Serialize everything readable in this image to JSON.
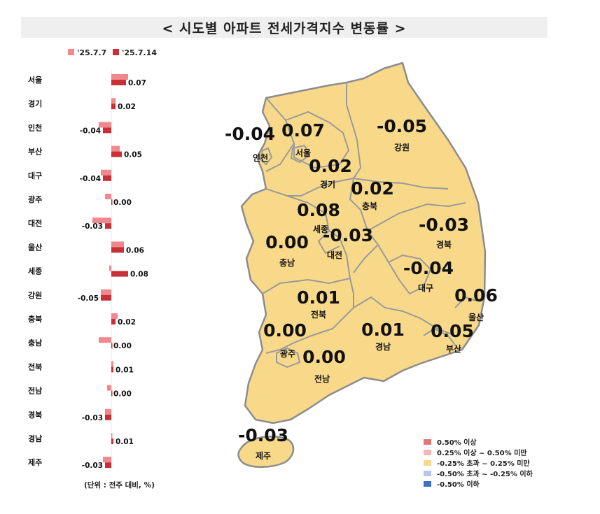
{
  "title": "< 시도별 아파트 전세가격지수 변동률 >",
  "unit_note": "(단위 : 전주 대비, %)",
  "chart_data": {
    "type": "bar",
    "orientation": "horizontal",
    "categories": [
      "서울",
      "경기",
      "인천",
      "부산",
      "대구",
      "광주",
      "대전",
      "울산",
      "세종",
      "강원",
      "충북",
      "충남",
      "전북",
      "전남",
      "경북",
      "경남",
      "제주"
    ],
    "series": [
      {
        "name": "'25.7.7",
        "color": "#f1888e",
        "values": [
          0.08,
          0.02,
          -0.06,
          0.04,
          -0.05,
          -0.03,
          -0.09,
          0.06,
          -0.01,
          -0.05,
          0.03,
          -0.06,
          0.01,
          -0.02,
          -0.03,
          0.0,
          -0.04
        ]
      },
      {
        "name": "'25.7.14",
        "color": "#c82f36",
        "values": [
          0.07,
          0.02,
          -0.04,
          0.05,
          -0.04,
          0.0,
          -0.03,
          0.06,
          0.08,
          -0.05,
          0.02,
          0.0,
          0.01,
          0.0,
          -0.03,
          0.01,
          -0.03
        ]
      }
    ],
    "value_labels": [
      "0.07",
      "0.02",
      "-0.04",
      "0.05",
      "-0.04",
      "0.00",
      "-0.03",
      "0.06",
      "0.08",
      "-0.05",
      "0.02",
      "0.00",
      "0.01",
      "0.00",
      "-0.03",
      "0.01",
      "-0.03"
    ],
    "legend_position": "top",
    "grid": false
  },
  "map": {
    "regions": [
      {
        "name": "서울",
        "value": "0.07"
      },
      {
        "name": "인천",
        "value": "-0.04"
      },
      {
        "name": "경기",
        "value": "0.02"
      },
      {
        "name": "강원",
        "value": "-0.05"
      },
      {
        "name": "충북",
        "value": "0.02"
      },
      {
        "name": "세종",
        "value": "0.08"
      },
      {
        "name": "대전",
        "value": "-0.03"
      },
      {
        "name": "충남",
        "value": "0.00"
      },
      {
        "name": "경북",
        "value": "-0.03"
      },
      {
        "name": "대구",
        "value": "-0.04"
      },
      {
        "name": "울산",
        "value": "0.06"
      },
      {
        "name": "전북",
        "value": "0.01"
      },
      {
        "name": "경남",
        "value": "0.01"
      },
      {
        "name": "부산",
        "value": "0.05"
      },
      {
        "name": "광주",
        "value": "0.00"
      },
      {
        "name": "전남",
        "value": "0.00"
      },
      {
        "name": "제주",
        "value": "-0.03"
      }
    ],
    "fill_color": "#f8d98a",
    "border_color": "#8c8c8c",
    "legend": [
      {
        "label": "0.50% 이상",
        "color": "#e07a7a"
      },
      {
        "label": "0.25% 이상 ~ 0.50% 미만",
        "color": "#f4b6b6"
      },
      {
        "label": "-0.25% 초과 ~ 0.25% 미만",
        "color": "#f8d98a"
      },
      {
        "label": "-0.50% 초과 ~ -0.25% 이하",
        "color": "#b9c6e6"
      },
      {
        "label": "-0.50% 이하",
        "color": "#3f6fc4"
      }
    ]
  }
}
